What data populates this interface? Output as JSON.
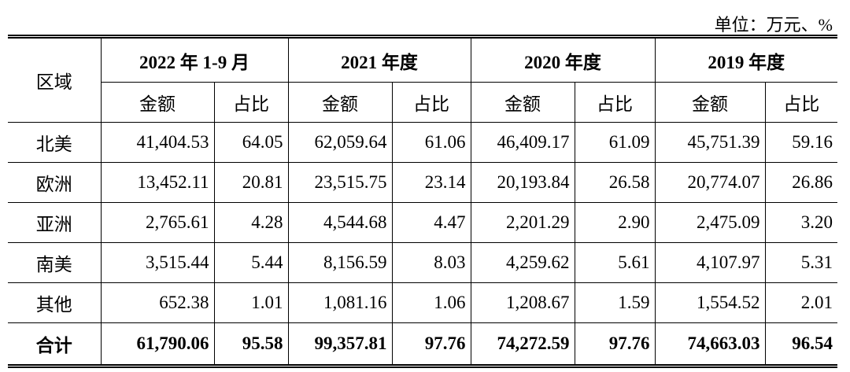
{
  "unit": "单位：万元、%",
  "header": {
    "region": "区域",
    "periods": [
      "2022 年 1-9 月",
      "2021 年度",
      "2020 年度",
      "2019 年度"
    ],
    "columns": [
      "金额",
      "占比"
    ]
  },
  "rows": [
    {
      "region": "北美",
      "values": [
        "41,404.53",
        "64.05",
        "62,059.64",
        "61.06",
        "46,409.17",
        "61.09",
        "45,751.39",
        "59.16"
      ]
    },
    {
      "region": "欧洲",
      "values": [
        "13,452.11",
        "20.81",
        "23,515.75",
        "23.14",
        "20,193.84",
        "26.58",
        "20,774.07",
        "26.86"
      ]
    },
    {
      "region": "亚洲",
      "values": [
        "2,765.61",
        "4.28",
        "4,544.68",
        "4.47",
        "2,201.29",
        "2.90",
        "2,475.09",
        "3.20"
      ]
    },
    {
      "region": "南美",
      "values": [
        "3,515.44",
        "5.44",
        "8,156.59",
        "8.03",
        "4,259.62",
        "5.61",
        "4,107.97",
        "5.31"
      ]
    },
    {
      "region": "其他",
      "values": [
        "652.38",
        "1.01",
        "1,081.16",
        "1.06",
        "1,208.67",
        "1.59",
        "1,554.52",
        "2.01"
      ]
    }
  ],
  "total": {
    "region": "合计",
    "values": [
      "61,790.06",
      "95.58",
      "99,357.81",
      "97.76",
      "74,272.59",
      "97.76",
      "74,663.03",
      "96.54"
    ]
  }
}
